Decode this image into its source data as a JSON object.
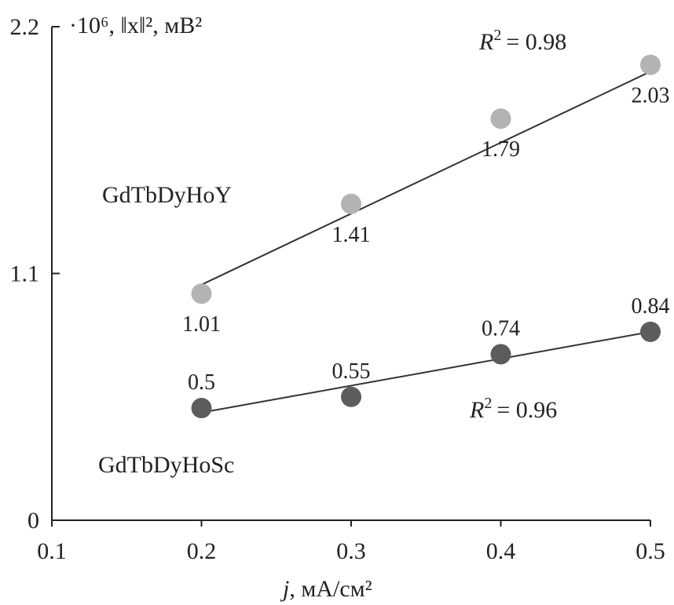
{
  "chart_data": {
    "type": "scatter",
    "ylabel": "·10⁶, ‖x‖², мВ²",
    "xlabel_italic": "j",
    "xlabel_rest": ", мА/см²",
    "xlim": [
      0.1,
      0.5
    ],
    "ylim": [
      0,
      2.2
    ],
    "x_ticks": [
      "0.1",
      "0.2",
      "0.3",
      "0.4",
      "0.5"
    ],
    "y_ticks": [
      "0",
      "1.1",
      "2.2"
    ],
    "grid": false,
    "series": [
      {
        "name": "GdTbDyHoY",
        "color": "#b3b3b3",
        "x": [
          0.2,
          0.3,
          0.4,
          0.5
        ],
        "y": [
          1.01,
          1.41,
          1.79,
          2.03
        ],
        "labels": [
          "1.01",
          "1.41",
          "1.79",
          "2.03"
        ],
        "fit": {
          "x": [
            0.2,
            0.5
          ],
          "y": [
            1.05,
            2.0
          ]
        },
        "r2_label": "= 0.98"
      },
      {
        "name": "GdTbDyHoSc",
        "color": "#5c5c5c",
        "x": [
          0.2,
          0.3,
          0.4,
          0.5
        ],
        "y": [
          0.5,
          0.55,
          0.74,
          0.84
        ],
        "labels": [
          "0.5",
          "0.55",
          "0.74",
          "0.84"
        ],
        "fit": {
          "x": [
            0.2,
            0.5
          ],
          "y": [
            0.48,
            0.84
          ]
        },
        "r2_label": "= 0.96"
      }
    ]
  }
}
